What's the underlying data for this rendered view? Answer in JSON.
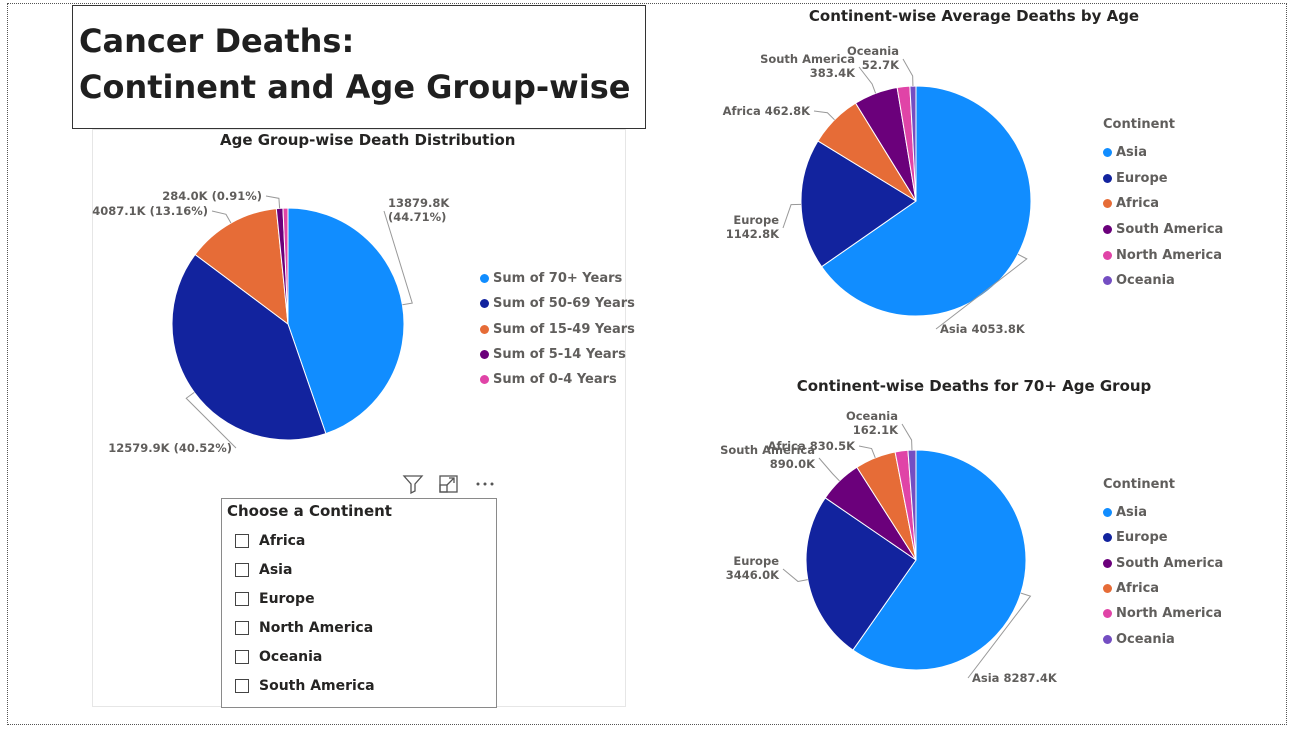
{
  "title": {
    "line1": "Cancer Deaths:",
    "line2": "Continent and Age Group-wise"
  },
  "slicer": {
    "header": "Choose a Continent",
    "options": [
      "Africa",
      "Asia",
      "Europe",
      "North America",
      "Oceania",
      "South America"
    ]
  },
  "visual_header_icons": [
    "filter-icon",
    "focus-mode-icon",
    "more-options-icon"
  ],
  "chart_data": [
    {
      "type": "pie",
      "title": "Age Group-wise Death Distribution",
      "legend_position": "right",
      "slices": [
        {
          "name": "Sum of 70+ Years",
          "value": 13879.8,
          "label": "13879.8K (44.71%)",
          "color": "#118DFF"
        },
        {
          "name": "Sum of 50-69 Years",
          "value": 12579.9,
          "label": "12579.9K (40.52%)",
          "color": "#12239E"
        },
        {
          "name": "Sum of 15-49 Years",
          "value": 4087.1,
          "label": "4087.1K (13.16%)",
          "color": "#E66C37"
        },
        {
          "name": "Sum of 5-14 Years",
          "value": 284.0,
          "label": "284.0K (0.91%)",
          "color": "#6B007B"
        },
        {
          "name": "Sum of 0-4 Years",
          "value": 215.0,
          "label": "",
          "color": "#E044A7"
        }
      ]
    },
    {
      "type": "pie",
      "title": "Continent-wise Average Deaths by Age",
      "legend_title": "Continent",
      "legend_position": "right",
      "slices": [
        {
          "name": "Asia",
          "value": 4053.8,
          "label": "Asia 4053.8K",
          "color": "#118DFF"
        },
        {
          "name": "Europe",
          "value": 1142.8,
          "label": "Europe 1142.8K",
          "color": "#12239E"
        },
        {
          "name": "Africa",
          "value": 462.8,
          "label": "Africa 462.8K",
          "color": "#E66C37"
        },
        {
          "name": "South America",
          "value": 383.4,
          "label": "South America 383.4K",
          "color": "#6B007B"
        },
        {
          "name": "North America",
          "value": 110.0,
          "label": "",
          "color": "#E044A7"
        },
        {
          "name": "Oceania",
          "value": 52.7,
          "label": "Oceania 52.7K",
          "color": "#744EC2"
        }
      ]
    },
    {
      "type": "pie",
      "title": "Continent-wise Deaths for 70+ Age Group",
      "legend_title": "Continent",
      "legend_position": "right",
      "slices": [
        {
          "name": "Asia",
          "value": 8287.4,
          "label": "Asia 8287.4K",
          "color": "#118DFF"
        },
        {
          "name": "Europe",
          "value": 3446.0,
          "label": "Europe 3446.0K",
          "color": "#12239E"
        },
        {
          "name": "South America",
          "value": 890.0,
          "label": "South America 890.0K",
          "color": "#6B007B"
        },
        {
          "name": "Africa",
          "value": 830.5,
          "label": "Africa 830.5K",
          "color": "#E66C37"
        },
        {
          "name": "North America",
          "value": 260.0,
          "label": "",
          "color": "#E044A7"
        },
        {
          "name": "Oceania",
          "value": 162.1,
          "label": "Oceania 162.1K",
          "color": "#744EC2"
        }
      ]
    }
  ]
}
